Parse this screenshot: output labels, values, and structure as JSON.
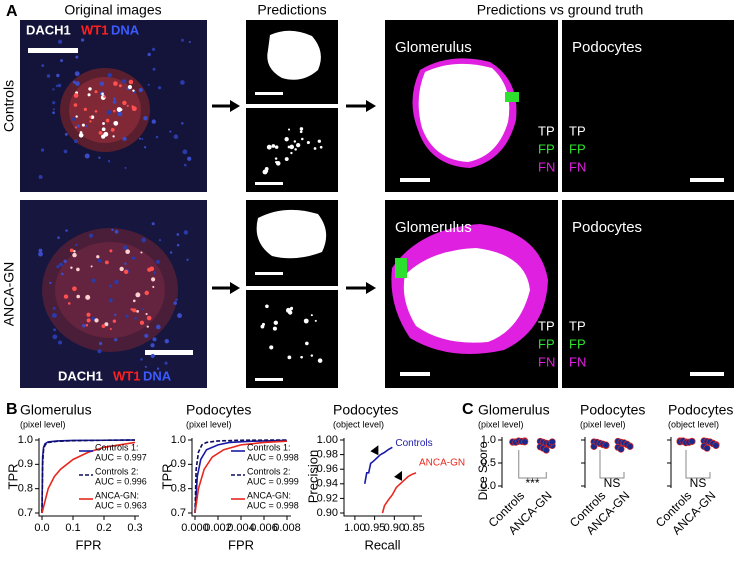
{
  "panel_labels": [
    "A",
    "B",
    "C"
  ],
  "panel_a": {
    "column_titles": [
      "Original images",
      "Predictions",
      "Predictions vs ground truth"
    ],
    "row_labels": [
      "Controls",
      "ANCA-GN"
    ],
    "stain_labels": [
      "DACH1",
      "WT1",
      "DNA"
    ],
    "panel_titles": [
      "Glomerulus",
      "Podocytes"
    ],
    "legend": [
      "TP",
      "FP",
      "FN"
    ]
  },
  "chart_data": [
    {
      "type": "line",
      "title": "Glomerulus",
      "subtitle": "(pixel level)",
      "xlabel": "FPR",
      "ylabel": "TPR",
      "xlim": [
        0,
        0.3
      ],
      "ylim": [
        0.7,
        1.0
      ],
      "xticks": [
        {
          "value": 0,
          "label": "0.0"
        },
        0.1,
        0.2,
        0.3
      ],
      "yticks": [
        0.7,
        0.8,
        0.9,
        {
          "value": 1.0,
          "label": "1.0"
        }
      ],
      "series": [
        {
          "name": "Controls 1:",
          "color": "#1a1aa6",
          "dash": false,
          "x": [
            0,
            0.002,
            0.005,
            0.01,
            0.02,
            0.05,
            0.1,
            0.2,
            0.3
          ],
          "values": [
            0.7,
            0.93,
            0.97,
            0.985,
            0.992,
            0.996,
            0.998,
            0.999,
            1.0
          ]
        },
        {
          "name": "Controls 2:",
          "color": "#0d0d5c",
          "dash": true,
          "x": [
            0,
            0.002,
            0.005,
            0.01,
            0.02,
            0.05,
            0.1,
            0.2,
            0.3
          ],
          "values": [
            0.7,
            0.9,
            0.96,
            0.98,
            0.99,
            0.995,
            0.997,
            0.999,
            1.0
          ]
        },
        {
          "name": "ANCA-GN:",
          "color": "#e8281e",
          "dash": false,
          "x": [
            0,
            0.01,
            0.02,
            0.04,
            0.06,
            0.1,
            0.15,
            0.2,
            0.3
          ],
          "values": [
            0.7,
            0.75,
            0.8,
            0.85,
            0.88,
            0.92,
            0.95,
            0.97,
            0.99
          ]
        }
      ],
      "annotations": [
        "AUC = 0.997",
        "AUC = 0.996",
        "AUC = 0.963"
      ]
    },
    {
      "type": "line",
      "title": "Podocytes",
      "subtitle": "(pixel level)",
      "xlabel": "FPR",
      "ylabel": "TPR",
      "xlim": [
        0,
        0.008
      ],
      "ylim": [
        0.7,
        1.0
      ],
      "xticks": [
        {
          "value": 0,
          "label": "0.000"
        },
        0.002,
        0.004,
        0.006,
        0.008
      ],
      "yticks": [
        0.7,
        0.8,
        0.9,
        {
          "value": 1.0,
          "label": "1.0"
        }
      ],
      "series": [
        {
          "name": "Controls 1:",
          "color": "#1a1aa6",
          "dash": false,
          "x": [
            0,
            0.0002,
            0.0005,
            0.001,
            0.002,
            0.003,
            0.005,
            0.008
          ],
          "values": [
            0.7,
            0.85,
            0.92,
            0.96,
            0.98,
            0.99,
            0.995,
            0.998
          ]
        },
        {
          "name": "Controls 2:",
          "color": "#0d0d5c",
          "dash": true,
          "x": [
            0,
            0.0001,
            0.0003,
            0.0006,
            0.001,
            0.002,
            0.004,
            0.008
          ],
          "values": [
            0.7,
            0.88,
            0.95,
            0.98,
            0.99,
            0.996,
            0.999,
            1.0
          ]
        },
        {
          "name": "ANCA-GN:",
          "color": "#e8281e",
          "dash": false,
          "x": [
            0,
            0.0003,
            0.0008,
            0.0015,
            0.0025,
            0.004,
            0.006,
            0.008
          ],
          "values": [
            0.7,
            0.8,
            0.88,
            0.93,
            0.96,
            0.98,
            0.99,
            0.995
          ]
        }
      ],
      "annotations": [
        "AUC = 0.998",
        "AUC = 0.999",
        "AUC = 0.998"
      ]
    },
    {
      "type": "line",
      "title": "Podocytes",
      "subtitle": "(object level)",
      "xlabel": "Recall",
      "ylabel": "Precision",
      "xlim": [
        1.02,
        0.84
      ],
      "ylim": [
        0.9,
        1.0
      ],
      "xticks": [
        {
          "value": 1.0,
          "label": "1.00"
        },
        0.95,
        {
          "value": 0.9,
          "label": "0.90"
        },
        0.85
      ],
      "yticks": [
        {
          "value": 0.9,
          "label": "0.90"
        },
        0.92,
        0.94,
        0.96,
        0.98,
        {
          "value": 1.0,
          "label": "1.00"
        }
      ],
      "series": [
        {
          "name": "Controls",
          "color": "#1a1aa6",
          "dash": false,
          "x": [
            0.975,
            0.97,
            0.965,
            0.96,
            0.955,
            0.945,
            0.935,
            0.925,
            0.915,
            0.905
          ],
          "values": [
            0.94,
            0.955,
            0.955,
            0.968,
            0.97,
            0.975,
            0.98,
            0.983,
            0.987,
            0.99
          ]
        },
        {
          "name": "ANCA-GN",
          "color": "#e8281e",
          "dash": false,
          "x": [
            0.93,
            0.925,
            0.915,
            0.905,
            0.895,
            0.885,
            0.875,
            0.865,
            0.855,
            0.845
          ],
          "values": [
            0.9,
            0.91,
            0.918,
            0.925,
            0.935,
            0.94,
            0.945,
            0.95,
            0.953,
            0.955
          ]
        }
      ]
    },
    {
      "type": "strip",
      "title": "Glomerulus",
      "subtitle": "(pixel level)",
      "ylabel": "Dice Score",
      "ylim": [
        0,
        1.0
      ],
      "yticks": [
        {
          "value": 0,
          "label": "0.0"
        },
        0.5,
        {
          "value": 1.0,
          "label": "1.0"
        }
      ],
      "show_tick_labels": true,
      "categories": [
        "Controls",
        "ANCA-GN"
      ],
      "color": "#1a2a8c",
      "significance": "***",
      "values": [
        [
          0.95,
          0.96,
          0.97,
          0.97,
          0.98,
          0.96,
          0.95,
          0.98,
          0.97,
          0.96
        ],
        [
          0.97,
          0.95,
          0.93,
          0.9,
          0.88,
          0.85,
          0.82,
          0.78,
          0.92,
          0.96
        ]
      ]
    },
    {
      "type": "strip",
      "title": "Podocytes",
      "subtitle": "(pixel level)",
      "ylim": [
        0,
        1.0
      ],
      "yticks": [
        {
          "value": 0,
          "label": "0.0"
        },
        0.5,
        {
          "value": 1.0,
          "label": "1.0"
        }
      ],
      "show_tick_labels": false,
      "categories": [
        "Controls",
        "ANCA-GN"
      ],
      "color": "#1a2a8c",
      "significance": "NS",
      "values": [
        [
          0.96,
          0.94,
          0.92,
          0.9,
          0.88,
          0.86,
          0.95,
          0.93,
          0.91,
          0.89
        ],
        [
          0.97,
          0.95,
          0.92,
          0.9,
          0.87,
          0.84,
          0.8,
          0.94,
          0.91,
          0.86
        ]
      ]
    },
    {
      "type": "strip",
      "title": "Podocytes",
      "subtitle": "(object level)",
      "ylim": [
        0,
        1.0
      ],
      "yticks": [
        {
          "value": 0,
          "label": "0.0"
        },
        0.5,
        {
          "value": 1.0,
          "label": "1.0"
        }
      ],
      "show_tick_labels": false,
      "categories": [
        "Controls",
        "ANCA-GN"
      ],
      "color": "#1a2a8c",
      "significance": "NS",
      "values": [
        [
          0.98,
          0.97,
          0.96,
          0.95,
          0.97,
          0.96,
          0.98,
          0.94,
          0.95,
          0.97
        ],
        [
          0.98,
          0.97,
          0.95,
          0.93,
          0.9,
          0.86,
          0.82,
          0.96,
          0.92,
          0.88
        ]
      ]
    }
  ]
}
